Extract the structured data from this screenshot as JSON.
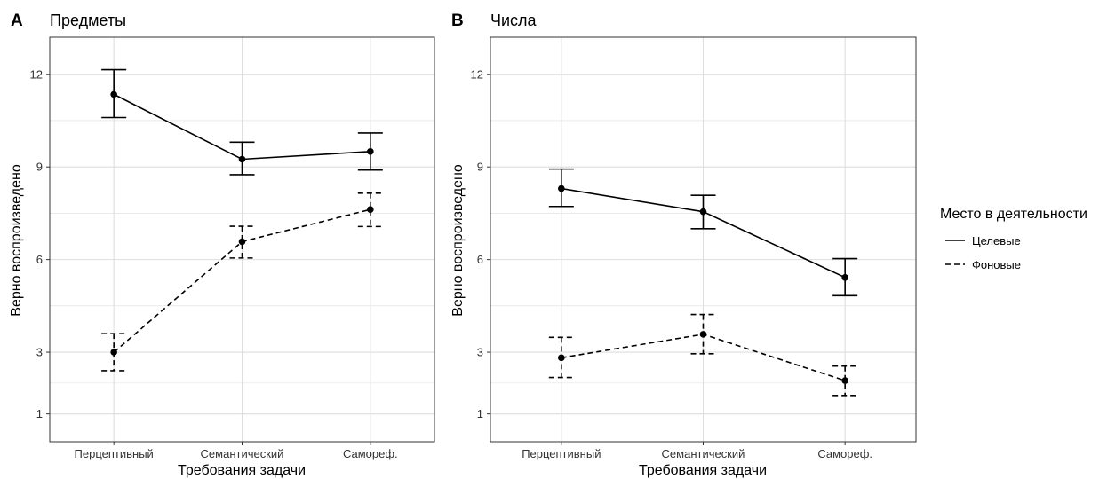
{
  "legend": {
    "title": "Место в деятельности",
    "items": [
      {
        "label": "Целевые",
        "linetype": "solid"
      },
      {
        "label": "Фоновые",
        "linetype": "dashed"
      }
    ]
  },
  "colors": {
    "line": "#000000",
    "grid": "#dedede",
    "border": "#333333"
  },
  "chart_data": [
    {
      "type": "line",
      "panel_letter": "A",
      "title": "Предметы",
      "xlabel": "Требования задачи",
      "ylabel": "Верно воспроизведено",
      "categories": [
        "Перцептивный",
        "Семантический",
        "Самореф."
      ],
      "yticks": [
        1,
        3,
        6,
        9,
        12
      ],
      "ylim": [
        0.1,
        13.2
      ],
      "grid": true,
      "series": [
        {
          "name": "Целевые",
          "linetype": "solid",
          "values": [
            11.35,
            9.25,
            9.5
          ],
          "lower": [
            10.6,
            8.75,
            8.9
          ],
          "upper": [
            12.15,
            9.8,
            10.1
          ]
        },
        {
          "name": "Фоновые",
          "linetype": "dashed",
          "values": [
            3.0,
            6.58,
            7.62
          ],
          "lower": [
            2.4,
            6.05,
            7.07
          ],
          "upper": [
            3.6,
            7.08,
            8.15
          ]
        }
      ]
    },
    {
      "type": "line",
      "panel_letter": "B",
      "title": "Числа",
      "xlabel": "Требования задачи",
      "ylabel": "Верно воспроизведено",
      "categories": [
        "Перцептивный",
        "Семантический",
        "Самореф."
      ],
      "yticks": [
        1,
        3,
        6,
        9,
        12
      ],
      "ylim": [
        0.1,
        13.2
      ],
      "grid": true,
      "series": [
        {
          "name": "Целевые",
          "linetype": "solid",
          "values": [
            8.3,
            7.55,
            5.42
          ],
          "lower": [
            7.72,
            7.0,
            4.83
          ],
          "upper": [
            8.93,
            8.08,
            6.03
          ]
        },
        {
          "name": "Фоновые",
          "linetype": "dashed",
          "values": [
            2.82,
            3.58,
            2.08
          ],
          "lower": [
            2.18,
            2.95,
            1.6
          ],
          "upper": [
            3.48,
            4.22,
            2.55
          ]
        }
      ]
    }
  ]
}
